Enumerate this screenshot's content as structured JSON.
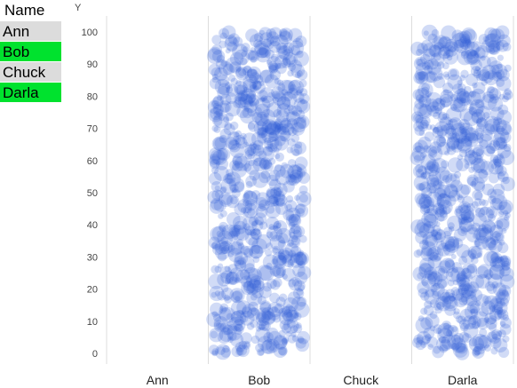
{
  "listbox": {
    "header": "Name",
    "items": [
      {
        "label": "Ann",
        "selected": false
      },
      {
        "label": "Bob",
        "selected": true
      },
      {
        "label": "Chuck",
        "selected": false
      },
      {
        "label": "Darla",
        "selected": true
      }
    ]
  },
  "colors": {
    "selected": "#00e22e",
    "unselected": "#dcdcdc",
    "bubble": "#2f5ad8"
  },
  "chart_data": {
    "type": "scatter",
    "ylabel": "Y",
    "xlabel": "",
    "categories": [
      "Ann",
      "Bob",
      "Chuck",
      "Darla"
    ],
    "ylim": [
      0,
      100
    ],
    "yticks": [
      0,
      10,
      20,
      30,
      40,
      50,
      60,
      70,
      80,
      90,
      100
    ],
    "grid": false,
    "series": [
      {
        "category": "Bob",
        "y_range": [
          0,
          100
        ],
        "approx_point_count": 800
      },
      {
        "category": "Darla",
        "y_range": [
          0,
          100
        ],
        "approx_point_count": 800
      }
    ]
  }
}
